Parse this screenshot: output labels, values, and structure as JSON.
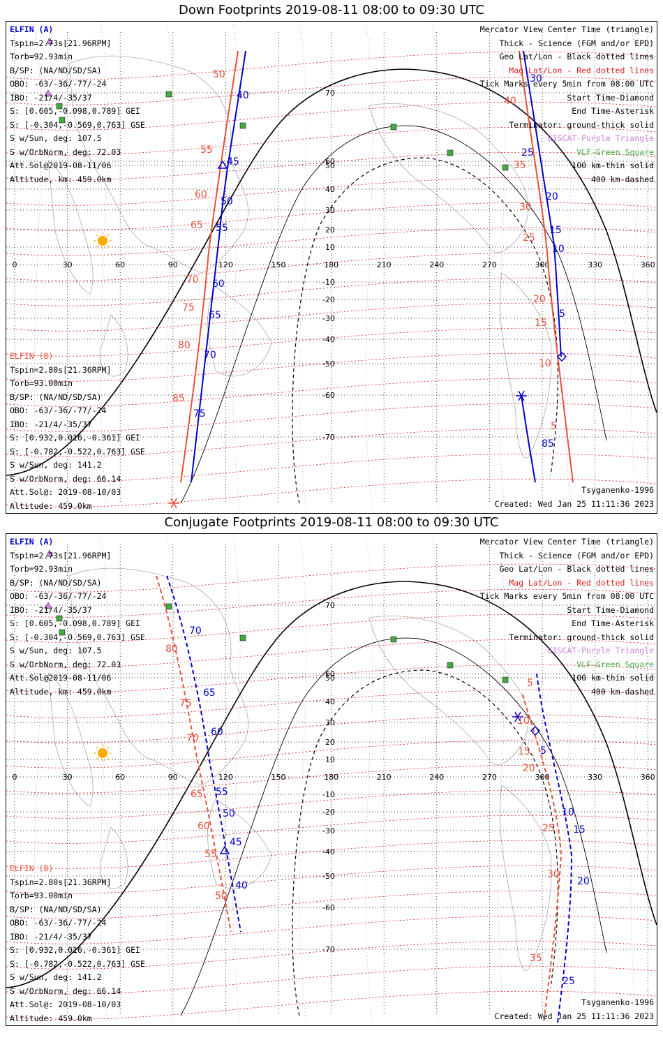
{
  "titles": {
    "down": "Down Footprints 2019-08-11 08:00 to 09:30 UTC",
    "conj": "Conjugate Footprints 2019-08-11 08:00 to 09:30 UTC"
  },
  "elfin_a": {
    "header": "ELFIN (A)",
    "lines": [
      "Tspin=2.73s[21.96RPM]",
      "Torb=92.93min",
      "B/SP: (NA/ND/SD/SA)",
      "OBO: -63/-36/-77/-24",
      "IBO: -21/4/-35/37",
      "S: [0.605,-0.098,0.789] GEI",
      "S: [-0.304,-0.569,0.763] GSE",
      "S w/Sun, deg: 107.5",
      "S w/OrbNorm, deg: 72.03",
      "Att.Sol@2019-08-11/06",
      "Altitude, km: 459.0km"
    ]
  },
  "elfin_b": {
    "header": "ELFIN (B)",
    "lines": [
      "Tspin=2.80s[21.36RPM]",
      "Torb=93.00min",
      "B/SP: (NA/ND/SD/SA)",
      "OBO: -63/-36/-77/-24",
      "IBO: -21/4/-35/37",
      "S: [0.932,0.016,-0.361] GEI",
      "S: [-0.782,-0.522,0.763] GSE",
      "S w/Sun, deg: 141.2",
      "S w/OrbNorm, deg: 66.14",
      "Att.Sol@: 2019-08-10/03"
    ],
    "altitude": "Altitude: 459.0km"
  },
  "legend": [
    {
      "text": "Mercator View Center Time (triangle)",
      "color": "#000000"
    },
    {
      "text": "Thick - Science (FGM and/or EPD)",
      "color": "#000000"
    },
    {
      "text": "Geo Lat/Lon - Black dotted lines",
      "color": "#000000"
    },
    {
      "text": "Mag Lat/Lon - Red dotted lines",
      "color": "#e0201f"
    },
    {
      "text": "Tick Marks every 5min from 08:00 UTC",
      "color": "#000000"
    },
    {
      "text": "Start Time-Diamond",
      "color": "#000000"
    },
    {
      "text": "End Time-Asterisk",
      "color": "#000000"
    },
    {
      "text": "Terminator: ground-thick solid",
      "color": "#000000"
    },
    {
      "text": "EISCAT-Purple Triangle",
      "color": "#d080e0"
    },
    {
      "text": "VLF-Green Square",
      "color": "#44aa44"
    },
    {
      "text": "100 km-thin solid",
      "color": "#000000"
    },
    {
      "text": "400 km-dashed",
      "color": "#000000"
    }
  ],
  "footer": {
    "model": "Tsyganenko-1996",
    "created": "Created: Wed Jan 25 11:11:36 2023"
  },
  "lon_ticks": [
    "0",
    "30",
    "60",
    "90",
    "120",
    "150",
    "180",
    "210",
    "240",
    "270",
    "300",
    "330",
    "360"
  ],
  "lat_ticks": [
    "70",
    "60",
    "50",
    "40",
    "30",
    "20",
    "10",
    "-10",
    "-20",
    "-30",
    "-40",
    "-50",
    "-60",
    "-70"
  ],
  "down": {
    "a_labels": [
      "40",
      "45",
      "50",
      "55",
      "60",
      "65",
      "70",
      "75",
      "30",
      "25",
      "20",
      "15",
      "10",
      "5",
      "85"
    ],
    "b_labels": [
      "50",
      "55",
      "60",
      "65",
      "70",
      "75",
      "80",
      "85",
      "40",
      "35",
      "30",
      "25",
      "20",
      "15",
      "10",
      "5"
    ]
  },
  "conj": {
    "a_labels": [
      "70",
      "65",
      "60",
      "55",
      "50",
      "45",
      "40",
      "5",
      "10",
      "15",
      "20",
      "25"
    ],
    "b_labels": [
      "80",
      "75",
      "70",
      "65",
      "60",
      "55",
      "50",
      "10",
      "15",
      "20",
      "25",
      "30",
      "35",
      "5"
    ]
  },
  "colors": {
    "elfin_a": "#0000cc",
    "elfin_b": "#e8503a",
    "mag_grid": "#dd1111",
    "geo_grid": "#000000",
    "sun": "#ffaa00",
    "vlf": "#44aa44",
    "eiscat": "#d080e0"
  }
}
